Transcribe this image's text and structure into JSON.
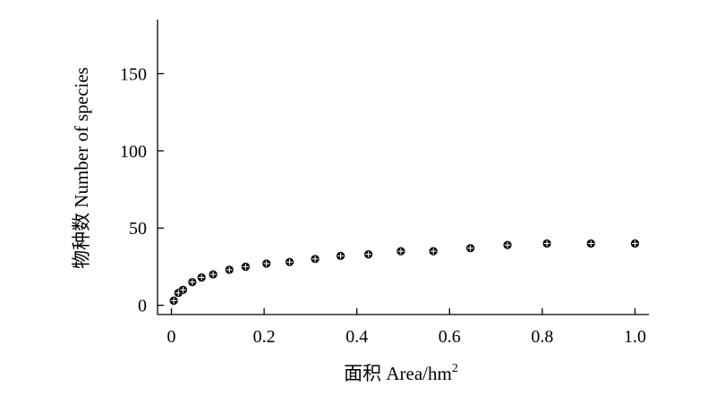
{
  "chart_data": {
    "type": "scatter",
    "xlabel": "面积 Area/hm",
    "xlabel_superscript": "2",
    "ylabel": "物种数 Number of species",
    "xlim": [
      -0.03,
      1.03
    ],
    "ylim": [
      -6,
      185
    ],
    "xticks": [
      0,
      0.2,
      0.4,
      0.6,
      0.8,
      1.0
    ],
    "xtick_labels": [
      "0",
      "0.2",
      "0.4",
      "0.6",
      "0.8",
      "1.0"
    ],
    "yticks": [
      0,
      50,
      100,
      150
    ],
    "ytick_labels": [
      "0",
      "50",
      "100",
      "150"
    ],
    "grid": false,
    "legend": "none",
    "marker": "circle-plus",
    "color": "#000000",
    "x": [
      0.005,
      0.015,
      0.025,
      0.045,
      0.065,
      0.09,
      0.125,
      0.16,
      0.205,
      0.255,
      0.31,
      0.365,
      0.425,
      0.495,
      0.565,
      0.645,
      0.725,
      0.81,
      0.905,
      1.0
    ],
    "y": [
      3,
      8,
      10,
      15,
      18,
      20,
      23,
      25,
      27,
      28,
      30,
      32,
      33,
      35,
      35,
      37,
      39,
      40,
      40,
      40
    ]
  }
}
